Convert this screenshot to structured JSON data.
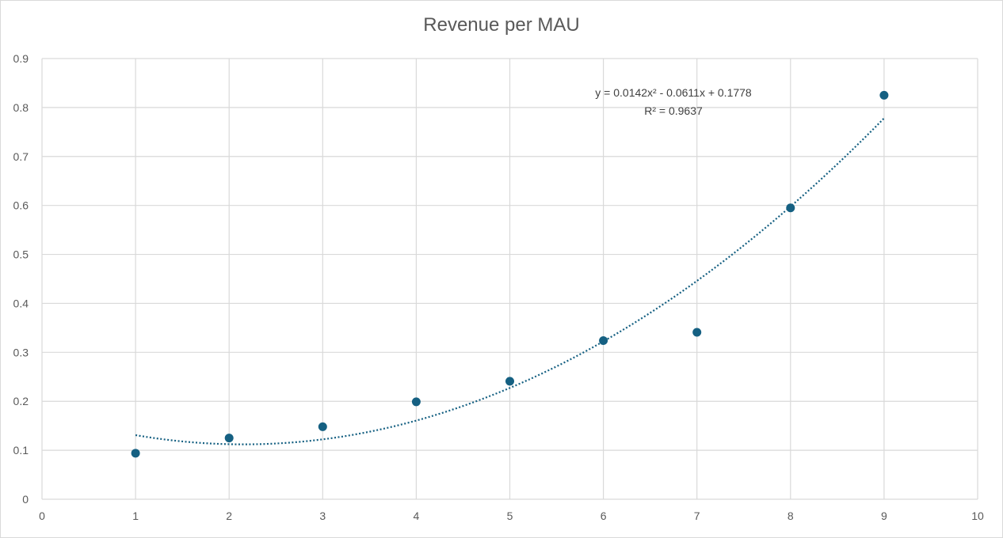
{
  "chart_data": {
    "type": "scatter",
    "title": "Revenue per MAU",
    "xlabel": "",
    "ylabel": "",
    "xlim": [
      0,
      10
    ],
    "ylim": [
      0,
      0.9
    ],
    "x_ticks": [
      "0",
      "1",
      "2",
      "3",
      "4",
      "5",
      "6",
      "7",
      "8",
      "9",
      "10"
    ],
    "y_ticks": [
      "0",
      "0.1",
      "0.2",
      "0.3",
      "0.4",
      "0.5",
      "0.6",
      "0.7",
      "0.8",
      "0.9"
    ],
    "grid": true,
    "legend": "none",
    "series": [
      {
        "color": "#156082",
        "points": [
          {
            "x": 1,
            "y": 0.094
          },
          {
            "x": 2,
            "y": 0.125
          },
          {
            "x": 3,
            "y": 0.148
          },
          {
            "x": 4,
            "y": 0.199
          },
          {
            "x": 5,
            "y": 0.241
          },
          {
            "x": 6,
            "y": 0.324
          },
          {
            "x": 7,
            "y": 0.341
          },
          {
            "x": 8,
            "y": 0.595
          },
          {
            "x": 9,
            "y": 0.825
          }
        ]
      }
    ],
    "trendline": {
      "type": "polynomial",
      "order": 2,
      "coefficients": [
        0.0142,
        -0.0611,
        0.1778
      ],
      "x_range": [
        1,
        9
      ],
      "style": "dotted",
      "color": "#156082",
      "equation_text": "y = 0.0142x² - 0.0611x + 0.1778",
      "r2_text": "R² = 0.9637"
    }
  }
}
